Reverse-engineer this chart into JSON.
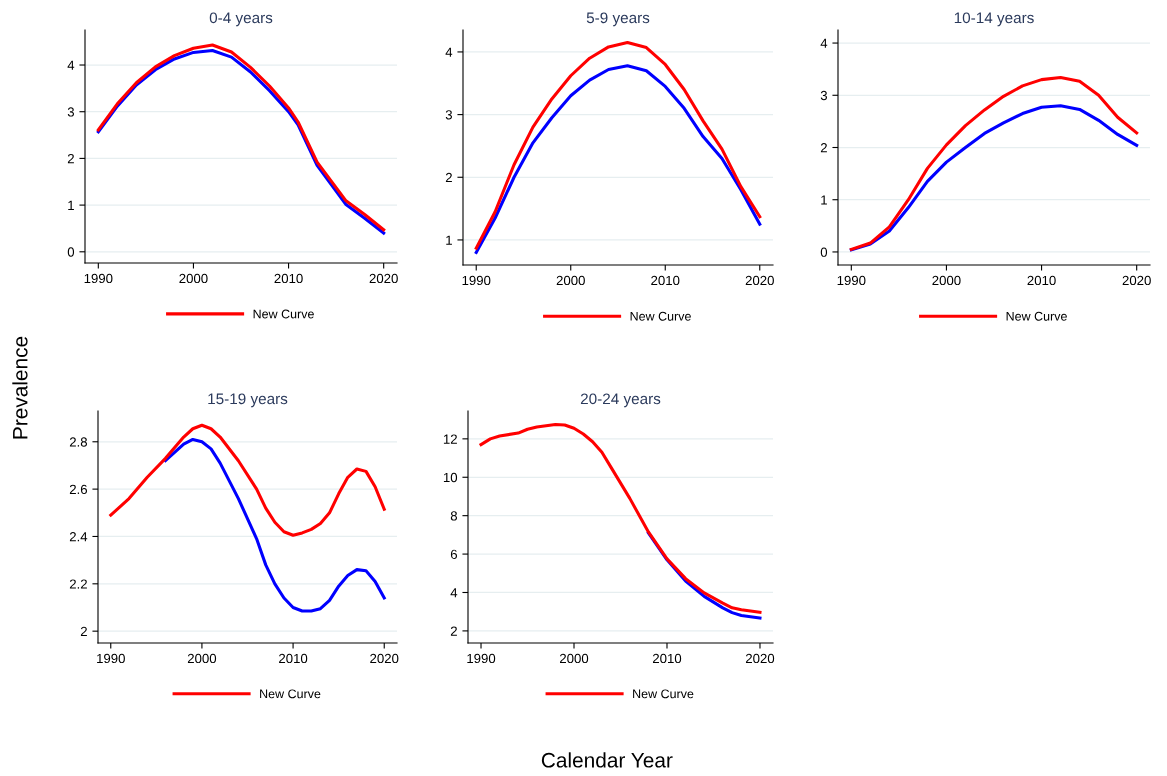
{
  "chart_data": [
    {
      "type": "line",
      "title": "0-4 years",
      "ylabel": "Prevalence",
      "x": [
        1990,
        1992,
        1994,
        1996,
        1998,
        2000,
        2002,
        2004,
        2006,
        2008,
        2010,
        2011,
        2013,
        2016,
        2018,
        2020
      ],
      "xlim": [
        1988.6,
        2021.4
      ],
      "xticks": [
        1990,
        2000,
        2010,
        2020
      ],
      "ylim": [
        -0.24,
        4.75
      ],
      "yticks": [
        0,
        1,
        2,
        3,
        4
      ],
      "grid": "y",
      "legend": "bottom",
      "series": [
        {
          "color": "#0000ff",
          "values": [
            2.57,
            3.12,
            3.57,
            3.9,
            4.13,
            4.27,
            4.31,
            4.17,
            3.85,
            3.45,
            3.0,
            2.72,
            1.85,
            1.02,
            0.72,
            0.4
          ]
        },
        {
          "name": "New Curve",
          "color": "#ff0000",
          "values": [
            2.61,
            3.17,
            3.62,
            3.96,
            4.2,
            4.36,
            4.43,
            4.28,
            3.95,
            3.55,
            3.08,
            2.78,
            1.92,
            1.1,
            0.8,
            0.47
          ]
        }
      ]
    },
    {
      "type": "line",
      "title": "5-9 years",
      "x": [
        1990,
        1992,
        1994,
        1996,
        1998,
        2000,
        2002,
        2004,
        2006,
        2008,
        2010,
        2012,
        2014,
        2016,
        2018,
        2020
      ],
      "xlim": [
        1988.6,
        2021.4
      ],
      "xticks": [
        1990,
        2000,
        2010,
        2020
      ],
      "ylim": [
        0.6,
        4.35
      ],
      "yticks": [
        1,
        2,
        3,
        4
      ],
      "grid": "y",
      "legend": "bottom",
      "series": [
        {
          "color": "#0000ff",
          "values": [
            0.8,
            1.35,
            2.0,
            2.55,
            2.95,
            3.3,
            3.55,
            3.72,
            3.78,
            3.7,
            3.45,
            3.1,
            2.65,
            2.3,
            1.8,
            1.25
          ]
        },
        {
          "name": "New Curve",
          "color": "#ff0000",
          "values": [
            0.87,
            1.45,
            2.2,
            2.8,
            3.25,
            3.62,
            3.9,
            4.08,
            4.15,
            4.07,
            3.8,
            3.4,
            2.9,
            2.45,
            1.85,
            1.37
          ]
        }
      ]
    },
    {
      "type": "line",
      "title": "10-14 years",
      "x": [
        1990,
        1992,
        1994,
        1996,
        1998,
        2000,
        2002,
        2004,
        2006,
        2008,
        2010,
        2012,
        2014,
        2016,
        2018,
        2020
      ],
      "xlim": [
        1988.6,
        2021.4
      ],
      "xticks": [
        1990,
        2000,
        2010,
        2020
      ],
      "ylim": [
        -0.25,
        4.25
      ],
      "yticks": [
        0,
        1,
        2,
        3,
        4
      ],
      "grid": "y",
      "legend": "bottom",
      "series": [
        {
          "color": "#0000ff",
          "values": [
            0.04,
            0.15,
            0.4,
            0.85,
            1.35,
            1.72,
            2.0,
            2.27,
            2.47,
            2.65,
            2.77,
            2.8,
            2.73,
            2.52,
            2.25,
            2.04
          ]
        },
        {
          "name": "New Curve",
          "color": "#ff0000",
          "values": [
            0.05,
            0.17,
            0.48,
            1.0,
            1.6,
            2.05,
            2.42,
            2.72,
            2.98,
            3.18,
            3.3,
            3.34,
            3.27,
            3.0,
            2.58,
            2.28
          ]
        }
      ]
    },
    {
      "type": "line",
      "title": "15-19 years",
      "x": [
        1990,
        1992,
        1994,
        1996,
        1998,
        1999,
        2000,
        2001,
        2002,
        2004,
        2006,
        2007,
        2008,
        2009,
        2010,
        2011,
        2012,
        2013,
        2014,
        2015,
        2016,
        2017,
        2018,
        2019,
        2020
      ],
      "xlim": [
        1988.6,
        2021.4
      ],
      "xticks": [
        1990,
        2000,
        2010,
        2020
      ],
      "ylim": [
        1.95,
        2.93
      ],
      "yticks": [
        2,
        2.2,
        2.4,
        2.6,
        2.8
      ],
      "grid": "y",
      "legend": "bottom",
      "series": [
        {
          "color": "#0000ff",
          "values": [
            null,
            null,
            null,
            2.72,
            2.79,
            2.81,
            2.8,
            2.77,
            2.71,
            2.56,
            2.39,
            2.28,
            2.2,
            2.14,
            2.1,
            2.085,
            2.085,
            2.095,
            2.13,
            2.19,
            2.235,
            2.26,
            2.255,
            2.21,
            2.14
          ]
        },
        {
          "name": "New Curve",
          "color": "#ff0000",
          "values": [
            2.49,
            2.56,
            2.65,
            2.73,
            2.82,
            2.855,
            2.87,
            2.855,
            2.82,
            2.72,
            2.6,
            2.52,
            2.46,
            2.42,
            2.405,
            2.415,
            2.43,
            2.455,
            2.5,
            2.58,
            2.65,
            2.685,
            2.675,
            2.61,
            2.515
          ]
        }
      ]
    },
    {
      "type": "line",
      "title": "20-24 years",
      "xlabel": "Calendar Year",
      "x": [
        1990,
        1991,
        1992,
        1994,
        1995,
        1996,
        1998,
        1999,
        2000,
        2001,
        2002,
        2003,
        2004,
        2006,
        2008,
        2010,
        2012,
        2014,
        2016,
        2017,
        2018,
        2020
      ],
      "xlim": [
        1988.6,
        2021.4
      ],
      "xticks": [
        1990,
        2000,
        2010,
        2020
      ],
      "ylim": [
        1.37,
        13.45
      ],
      "yticks": [
        2,
        4,
        6,
        8,
        10,
        12
      ],
      "grid": "y",
      "legend": "bottom",
      "series": [
        {
          "color": "#0000ff",
          "values": [
            null,
            null,
            null,
            null,
            null,
            null,
            null,
            null,
            null,
            null,
            null,
            null,
            null,
            null,
            7.1,
            5.7,
            4.6,
            3.8,
            3.2,
            2.95,
            2.8,
            2.67
          ]
        },
        {
          "name": "New Curve",
          "color": "#ff0000",
          "values": [
            11.7,
            12.0,
            12.15,
            12.3,
            12.5,
            12.62,
            12.75,
            12.72,
            12.55,
            12.25,
            11.85,
            11.3,
            10.5,
            8.9,
            7.15,
            5.75,
            4.72,
            3.98,
            3.45,
            3.2,
            3.1,
            2.97
          ]
        }
      ]
    }
  ]
}
